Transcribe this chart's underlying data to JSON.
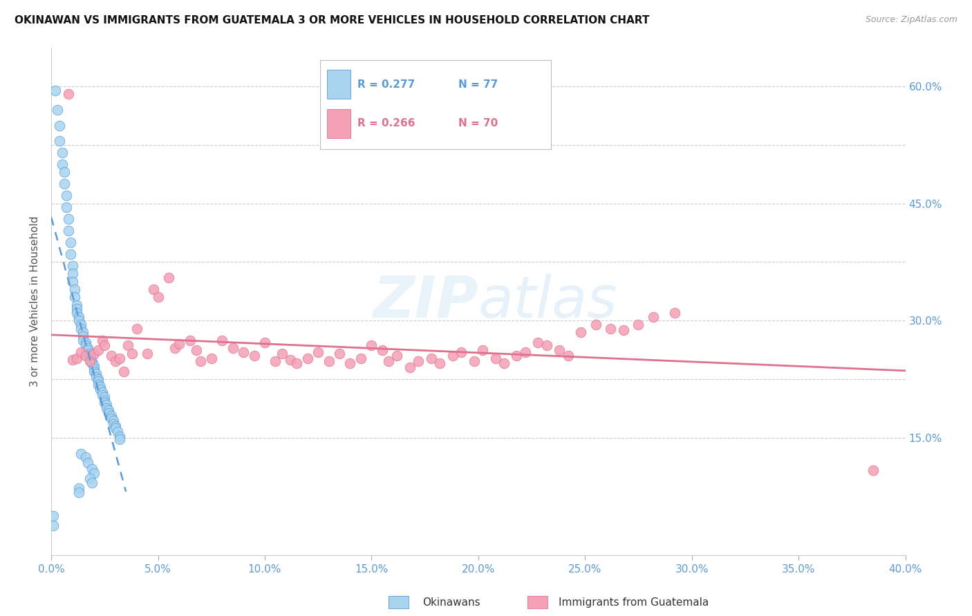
{
  "title": "OKINAWAN VS IMMIGRANTS FROM GUATEMALA 3 OR MORE VEHICLES IN HOUSEHOLD CORRELATION CHART",
  "source": "Source: ZipAtlas.com",
  "xlabel_blue": "Okinawans",
  "xlabel_pink": "Immigrants from Guatemala",
  "ylabel": "3 or more Vehicles in Household",
  "xlim": [
    0.0,
    0.4
  ],
  "ylim": [
    0.0,
    0.65
  ],
  "xticks": [
    0.0,
    0.05,
    0.1,
    0.15,
    0.2,
    0.25,
    0.3,
    0.35,
    0.4
  ],
  "ytick_labels_right": [
    "",
    "15.0%",
    "",
    "30.0%",
    "",
    "45.0%",
    "",
    "60.0%"
  ],
  "ytick_values": [
    0.0,
    0.15,
    0.225,
    0.3,
    0.375,
    0.45,
    0.525,
    0.6
  ],
  "legend_r_blue": "R = 0.277",
  "legend_n_blue": "N = 77",
  "legend_r_pink": "R = 0.266",
  "legend_n_pink": "N = 70",
  "blue_color": "#a8d4f0",
  "pink_color": "#f4a0b5",
  "blue_line_color": "#5b9bd5",
  "pink_line_color": "#e07090",
  "watermark": "ZIPatlas",
  "blue_scatter_x": [
    0.002,
    0.003,
    0.004,
    0.004,
    0.005,
    0.005,
    0.006,
    0.006,
    0.007,
    0.007,
    0.008,
    0.008,
    0.009,
    0.009,
    0.01,
    0.01,
    0.01,
    0.011,
    0.011,
    0.012,
    0.012,
    0.012,
    0.013,
    0.013,
    0.014,
    0.014,
    0.015,
    0.015,
    0.015,
    0.016,
    0.016,
    0.017,
    0.017,
    0.018,
    0.018,
    0.018,
    0.019,
    0.019,
    0.02,
    0.02,
    0.02,
    0.021,
    0.021,
    0.022,
    0.022,
    0.022,
    0.023,
    0.023,
    0.024,
    0.024,
    0.025,
    0.025,
    0.025,
    0.026,
    0.026,
    0.027,
    0.027,
    0.028,
    0.028,
    0.029,
    0.029,
    0.03,
    0.03,
    0.031,
    0.032,
    0.032,
    0.014,
    0.016,
    0.017,
    0.019,
    0.02,
    0.001,
    0.001,
    0.018,
    0.019,
    0.013,
    0.013
  ],
  "blue_scatter_y": [
    0.595,
    0.57,
    0.55,
    0.53,
    0.515,
    0.5,
    0.49,
    0.475,
    0.46,
    0.445,
    0.43,
    0.415,
    0.4,
    0.385,
    0.37,
    0.36,
    0.35,
    0.34,
    0.33,
    0.32,
    0.315,
    0.31,
    0.305,
    0.3,
    0.295,
    0.29,
    0.285,
    0.28,
    0.275,
    0.272,
    0.268,
    0.265,
    0.262,
    0.258,
    0.255,
    0.25,
    0.248,
    0.245,
    0.242,
    0.238,
    0.235,
    0.232,
    0.228,
    0.225,
    0.222,
    0.218,
    0.215,
    0.212,
    0.208,
    0.205,
    0.202,
    0.198,
    0.195,
    0.192,
    0.188,
    0.185,
    0.182,
    0.178,
    0.175,
    0.172,
    0.168,
    0.165,
    0.162,
    0.158,
    0.152,
    0.148,
    0.13,
    0.125,
    0.118,
    0.11,
    0.105,
    0.05,
    0.038,
    0.098,
    0.092,
    0.085,
    0.08
  ],
  "pink_scatter_x": [
    0.008,
    0.01,
    0.012,
    0.014,
    0.016,
    0.018,
    0.02,
    0.022,
    0.024,
    0.025,
    0.028,
    0.03,
    0.032,
    0.034,
    0.036,
    0.038,
    0.04,
    0.045,
    0.048,
    0.05,
    0.055,
    0.058,
    0.06,
    0.065,
    0.068,
    0.07,
    0.075,
    0.08,
    0.085,
    0.09,
    0.095,
    0.1,
    0.105,
    0.108,
    0.112,
    0.115,
    0.12,
    0.125,
    0.13,
    0.135,
    0.14,
    0.145,
    0.15,
    0.155,
    0.158,
    0.162,
    0.168,
    0.172,
    0.178,
    0.182,
    0.188,
    0.192,
    0.198,
    0.202,
    0.208,
    0.212,
    0.218,
    0.222,
    0.228,
    0.232,
    0.238,
    0.242,
    0.248,
    0.255,
    0.262,
    0.268,
    0.275,
    0.282,
    0.292,
    0.385
  ],
  "pink_scatter_y": [
    0.59,
    0.25,
    0.252,
    0.26,
    0.255,
    0.248,
    0.258,
    0.262,
    0.275,
    0.268,
    0.255,
    0.248,
    0.252,
    0.235,
    0.268,
    0.258,
    0.29,
    0.258,
    0.34,
    0.33,
    0.355,
    0.265,
    0.27,
    0.275,
    0.262,
    0.248,
    0.252,
    0.275,
    0.265,
    0.26,
    0.255,
    0.272,
    0.248,
    0.258,
    0.25,
    0.245,
    0.252,
    0.26,
    0.248,
    0.258,
    0.245,
    0.252,
    0.268,
    0.262,
    0.248,
    0.255,
    0.24,
    0.248,
    0.252,
    0.245,
    0.255,
    0.26,
    0.248,
    0.262,
    0.252,
    0.245,
    0.255,
    0.26,
    0.272,
    0.268,
    0.262,
    0.255,
    0.285,
    0.295,
    0.29,
    0.288,
    0.295,
    0.305,
    0.31,
    0.108
  ]
}
